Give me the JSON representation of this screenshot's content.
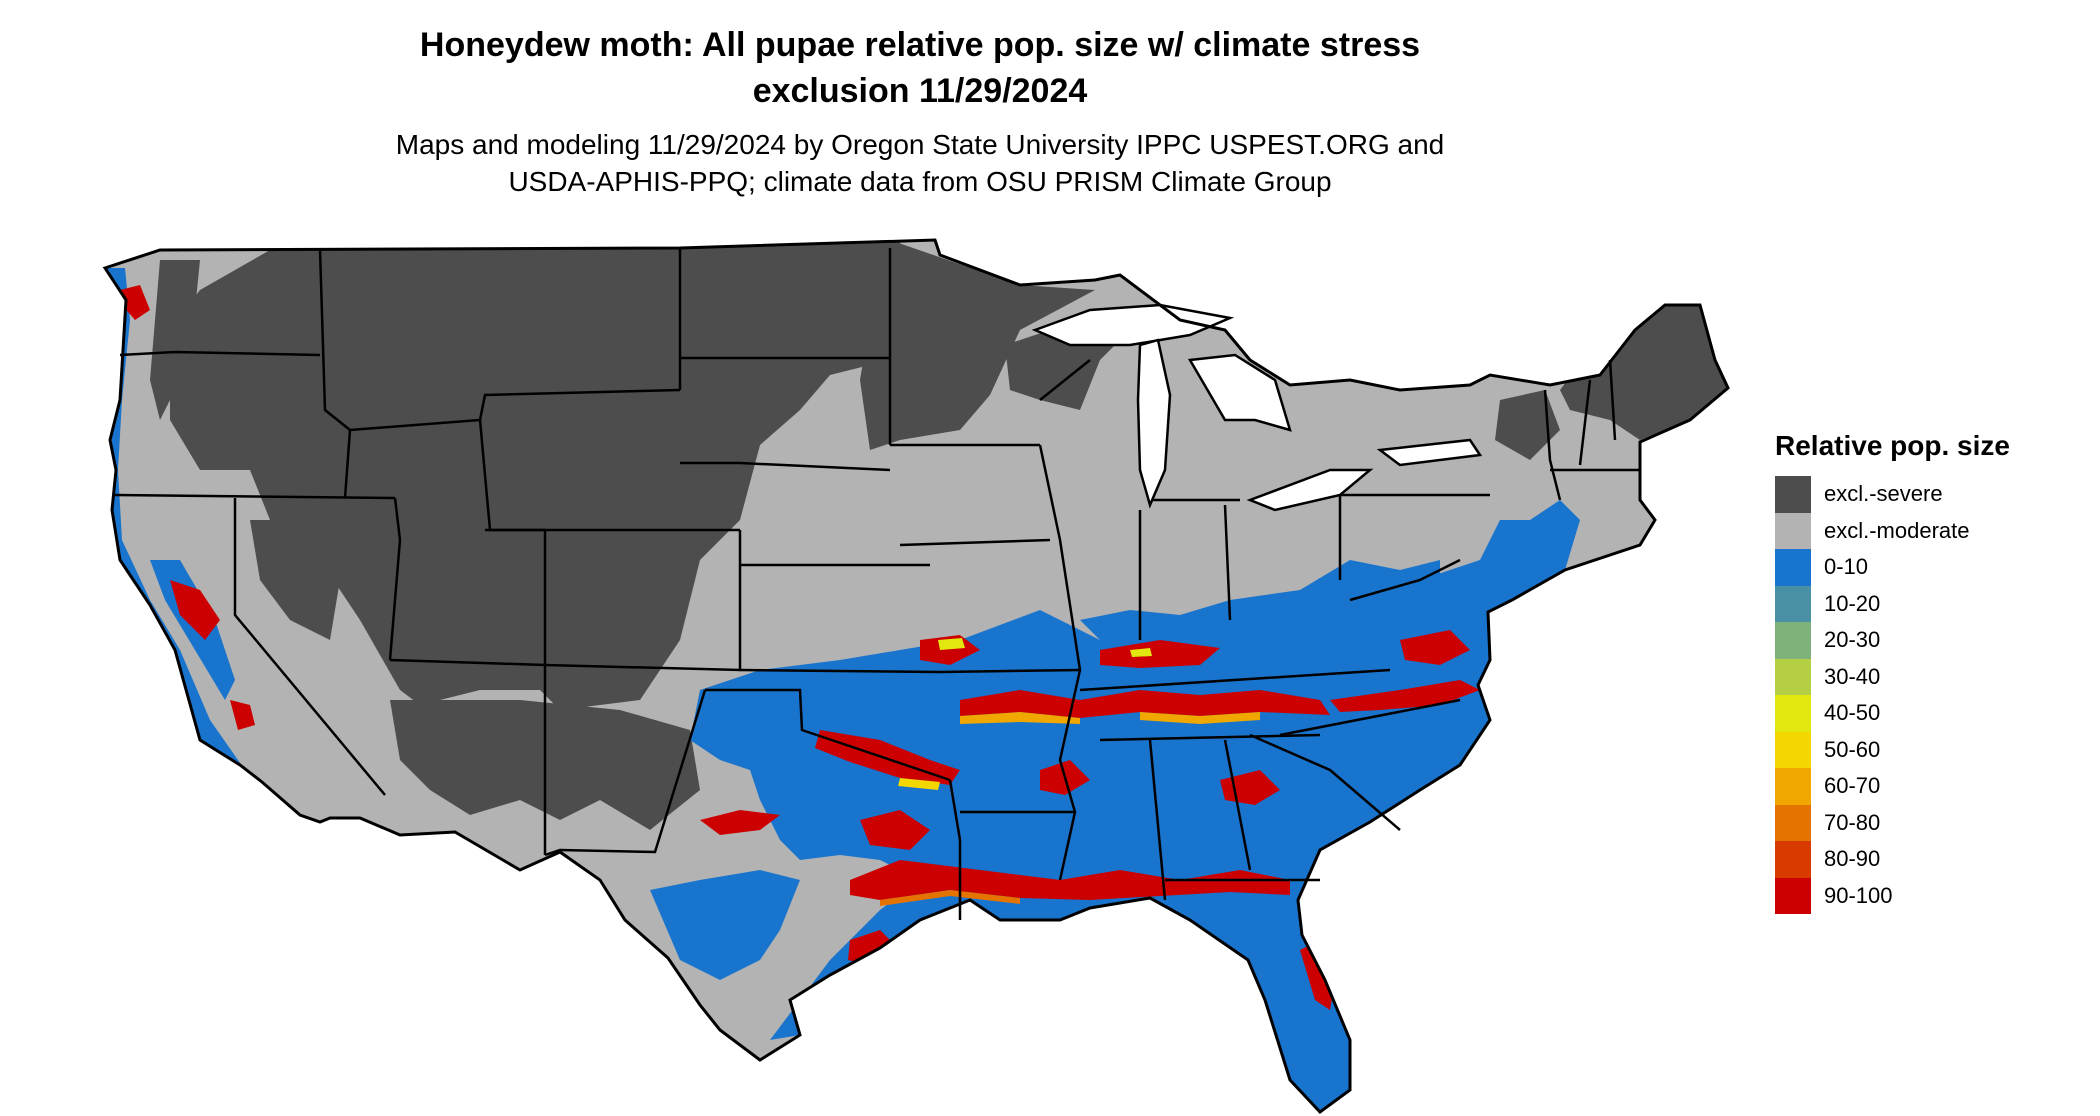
{
  "title_line1": "Honeydew moth: All pupae relative pop. size w/ climate stress",
  "title_line2": "exclusion 11/29/2024",
  "subtitle_line1": "Maps and modeling 11/29/2024 by Oregon State University IPPC USPEST.ORG and",
  "subtitle_line2": "USDA-APHIS-PPQ; climate data from OSU PRISM Climate Group",
  "legend": {
    "title": "Relative pop. size",
    "items": [
      {
        "label": "excl.-severe",
        "color": "#4d4d4d"
      },
      {
        "label": "excl.-moderate",
        "color": "#b3b3b3"
      },
      {
        "label": "0-10",
        "color": "#1874cd"
      },
      {
        "label": "10-20",
        "color": "#4a90a4"
      },
      {
        "label": "20-30",
        "color": "#7fb27a"
      },
      {
        "label": "30-40",
        "color": "#b5cf45"
      },
      {
        "label": "40-50",
        "color": "#e2e80f"
      },
      {
        "label": "50-60",
        "color": "#f4d600"
      },
      {
        "label": "60-70",
        "color": "#f0a700"
      },
      {
        "label": "70-80",
        "color": "#e57300"
      },
      {
        "label": "80-90",
        "color": "#d83a00"
      },
      {
        "label": "90-100",
        "color": "#cc0000"
      }
    ]
  }
}
